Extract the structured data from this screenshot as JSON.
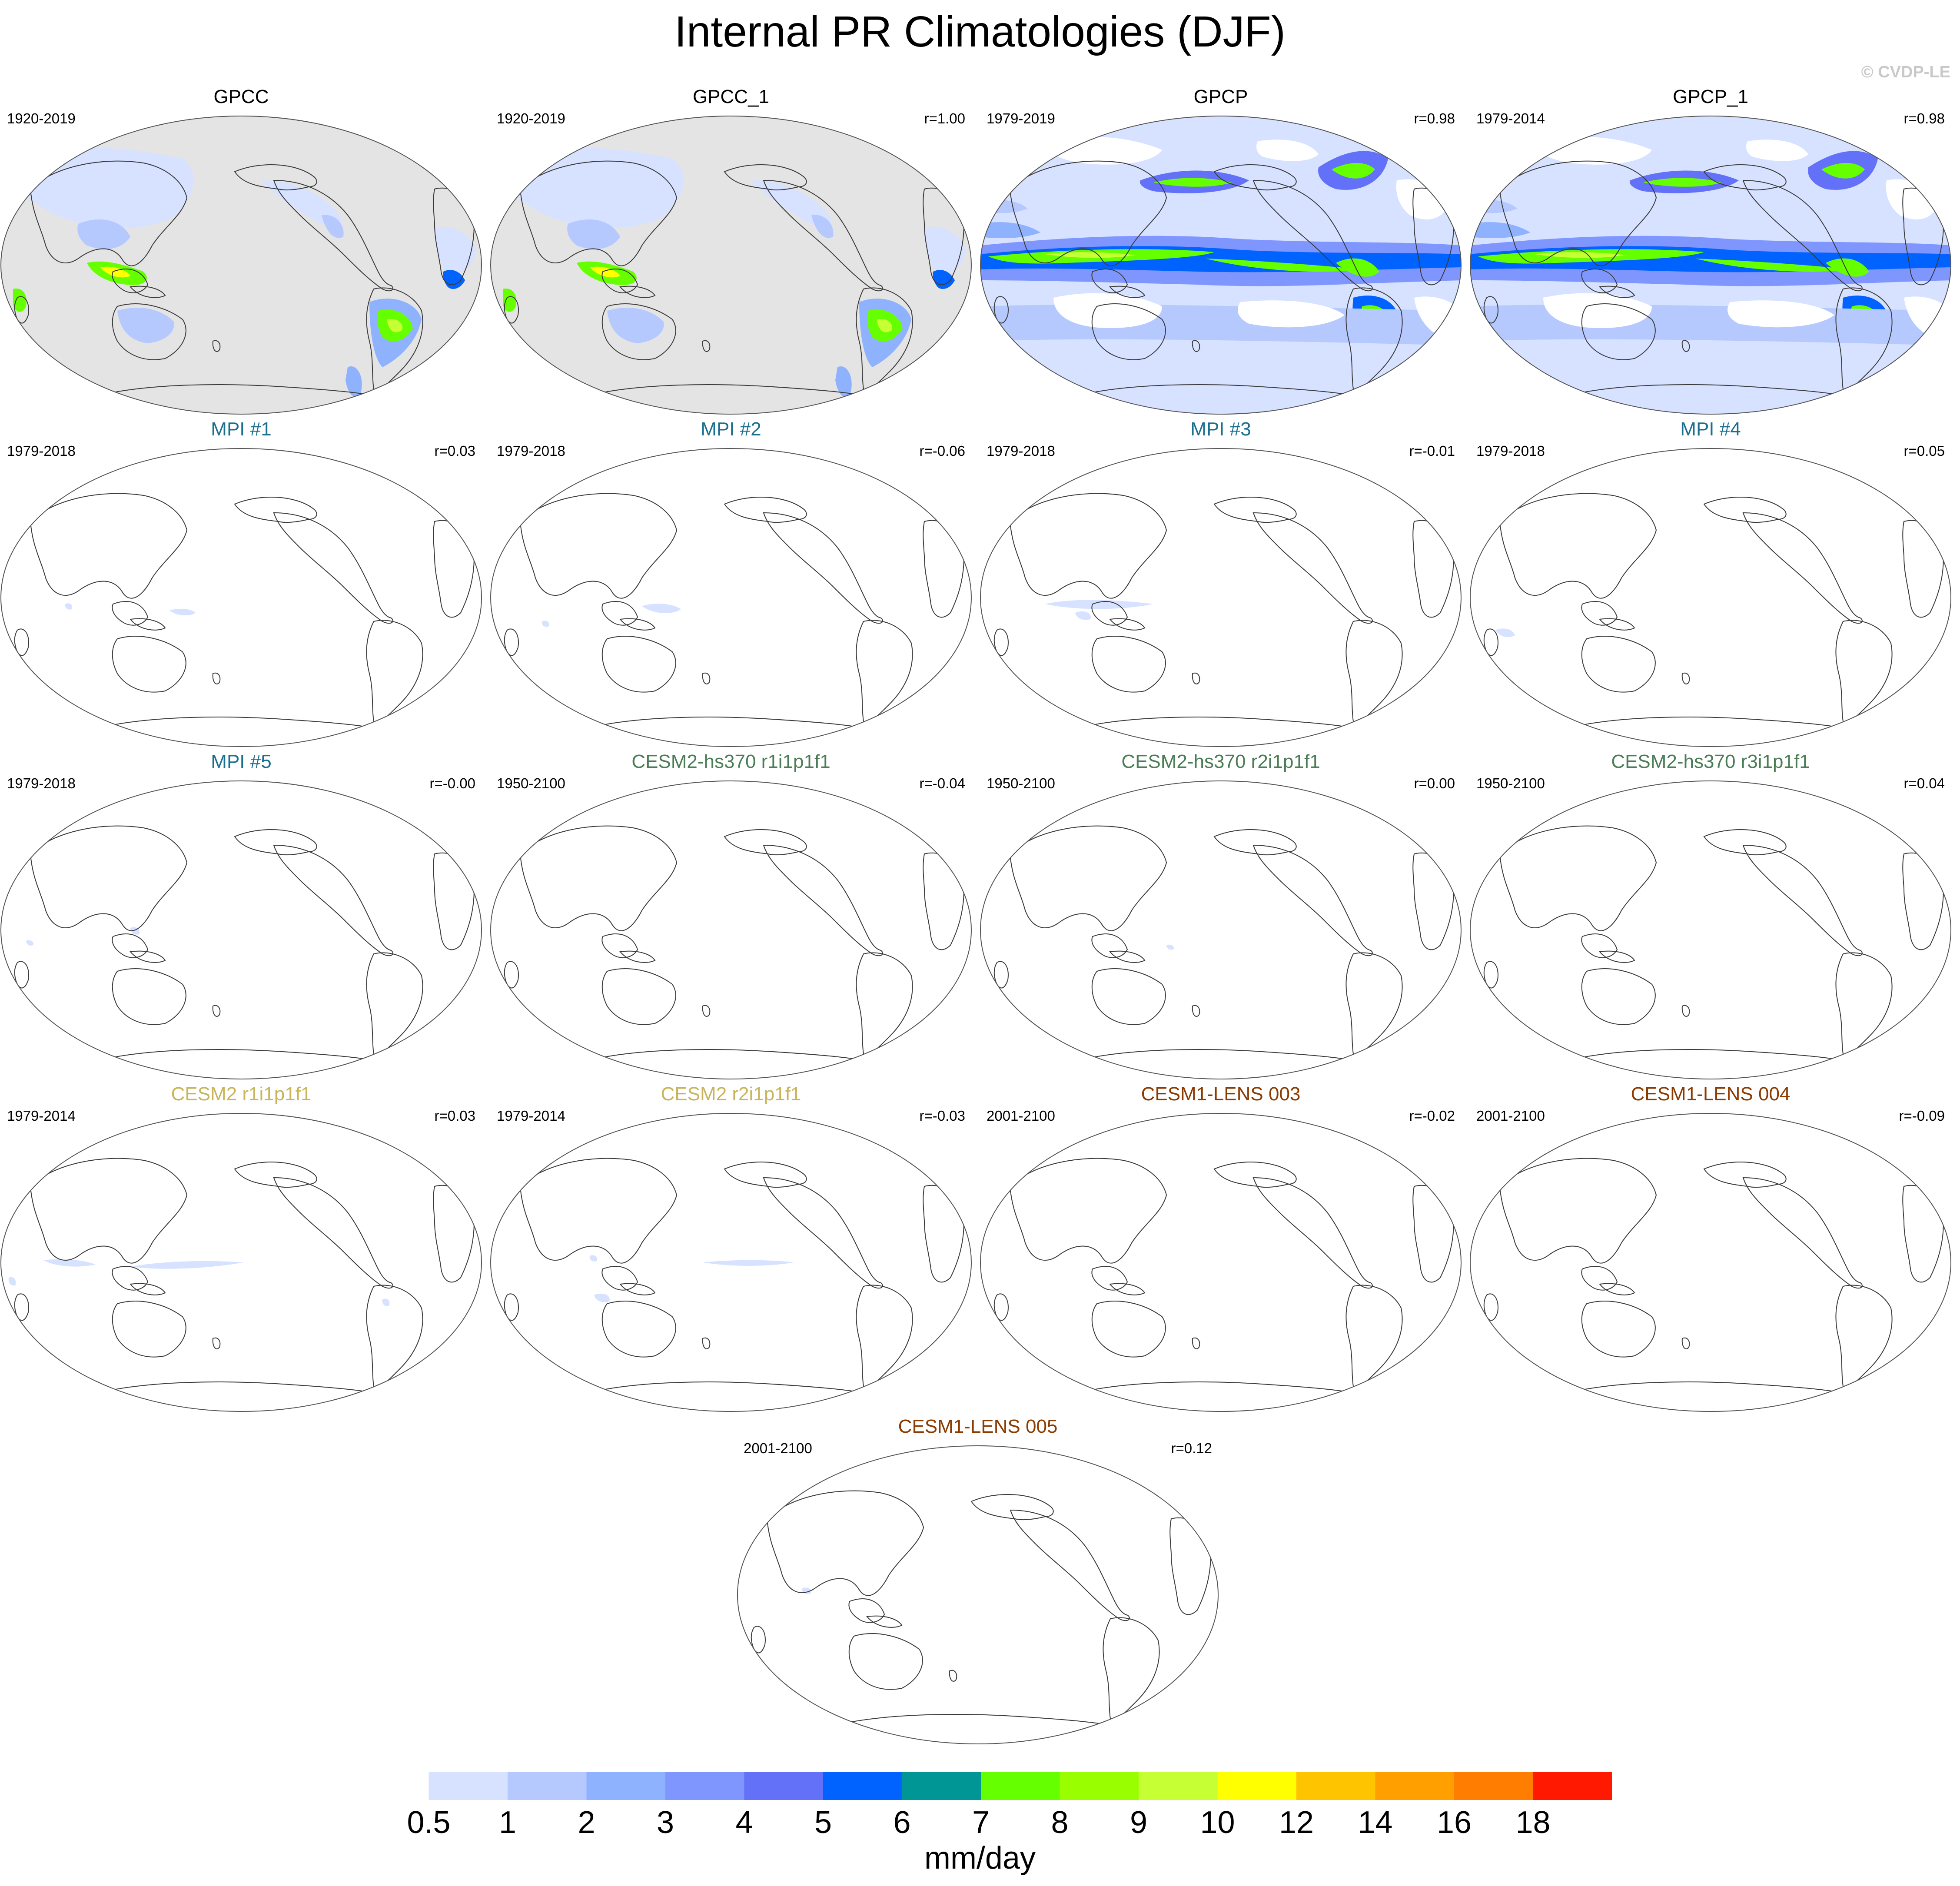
{
  "title": "Internal PR Climatologies (DJF)",
  "copyright": "© CVDP-LE",
  "legend": {
    "unit_label": "mm/day",
    "ticks": [
      "0.5",
      "1",
      "2",
      "3",
      "4",
      "5",
      "6",
      "7",
      "8",
      "9",
      "10",
      "12",
      "14",
      "16",
      "18"
    ],
    "colors": [
      "#ffffff",
      "#d6e2ff",
      "#b5c9ff",
      "#8fb2ff",
      "#7f96ff",
      "#6370f8",
      "#0063ff",
      "#009696",
      "#66ff00",
      "#99ff00",
      "#c6ff33",
      "#ffff00",
      "#ffc400",
      "#ffa000",
      "#ff7d00",
      "#ff1900"
    ]
  },
  "title_colors": {
    "obs": "#000000",
    "mpi": "#1a6f8f",
    "cesm2hs": "#4a7d56",
    "cesm2": "#c8b45a",
    "cesm1": "#8b3a00"
  },
  "panels": [
    {
      "title": "GPCC",
      "left": "1920-2019",
      "right": "",
      "style": "obs",
      "map": "gpcc",
      "title_color": "#000000"
    },
    {
      "title": "GPCC_1",
      "left": "1920-2019",
      "right": "r=1.00",
      "style": "obs",
      "map": "gpcc",
      "title_color": "#000000"
    },
    {
      "title": "GPCP",
      "left": "1979-2019",
      "right": "r=0.98",
      "style": "obs",
      "map": "gpcp",
      "title_color": "#000000"
    },
    {
      "title": "GPCP_1",
      "left": "1979-2014",
      "right": "r=0.98",
      "style": "obs",
      "map": "gpcp",
      "title_color": "#000000"
    },
    {
      "title": "MPI #1",
      "left": "1979-2018",
      "right": "r=0.03",
      "style": "mpi",
      "map": "blank",
      "title_color": "#1a6f8f"
    },
    {
      "title": "MPI #2",
      "left": "1979-2018",
      "right": "r=-0.06",
      "style": "mpi",
      "map": "blank",
      "title_color": "#1a6f8f"
    },
    {
      "title": "MPI #3",
      "left": "1979-2018",
      "right": "r=-0.01",
      "style": "mpi",
      "map": "blank",
      "title_color": "#1a6f8f"
    },
    {
      "title": "MPI #4",
      "left": "1979-2018",
      "right": "r=0.05",
      "style": "mpi",
      "map": "blank",
      "title_color": "#1a6f8f"
    },
    {
      "title": "MPI #5",
      "left": "1979-2018",
      "right": "r=-0.00",
      "style": "mpi",
      "map": "blank",
      "title_color": "#1a6f8f"
    },
    {
      "title": "CESM2-hs370 r1i1p1f1",
      "left": "1950-2100",
      "right": "r=-0.04",
      "style": "cesm2hs",
      "map": "blank",
      "title_color": "#4a7d56"
    },
    {
      "title": "CESM2-hs370 r2i1p1f1",
      "left": "1950-2100",
      "right": "r=0.00",
      "style": "cesm2hs",
      "map": "blank",
      "title_color": "#4a7d56"
    },
    {
      "title": "CESM2-hs370 r3i1p1f1",
      "left": "1950-2100",
      "right": "r=0.04",
      "style": "cesm2hs",
      "map": "blank",
      "title_color": "#4a7d56"
    },
    {
      "title": "CESM2 r1i1p1f1",
      "left": "1979-2014",
      "right": "r=0.03",
      "style": "cesm2",
      "map": "blank",
      "title_color": "#c8b45a"
    },
    {
      "title": "CESM2 r2i1p1f1",
      "left": "1979-2014",
      "right": "r=-0.03",
      "style": "cesm2",
      "map": "blank",
      "title_color": "#c8b45a"
    },
    {
      "title": "CESM1-LENS 003",
      "left": "2001-2100",
      "right": "r=-0.02",
      "style": "cesm1",
      "map": "blank",
      "title_color": "#8b3a00"
    },
    {
      "title": "CESM1-LENS 004",
      "left": "2001-2100",
      "right": "r=-0.09",
      "style": "cesm1",
      "map": "blank",
      "title_color": "#8b3a00"
    },
    {
      "title": "CESM1-LENS 005",
      "left": "2001-2100",
      "right": "r=0.12",
      "style": "cesm1",
      "map": "blank",
      "title_color": "#8b3a00"
    }
  ]
}
